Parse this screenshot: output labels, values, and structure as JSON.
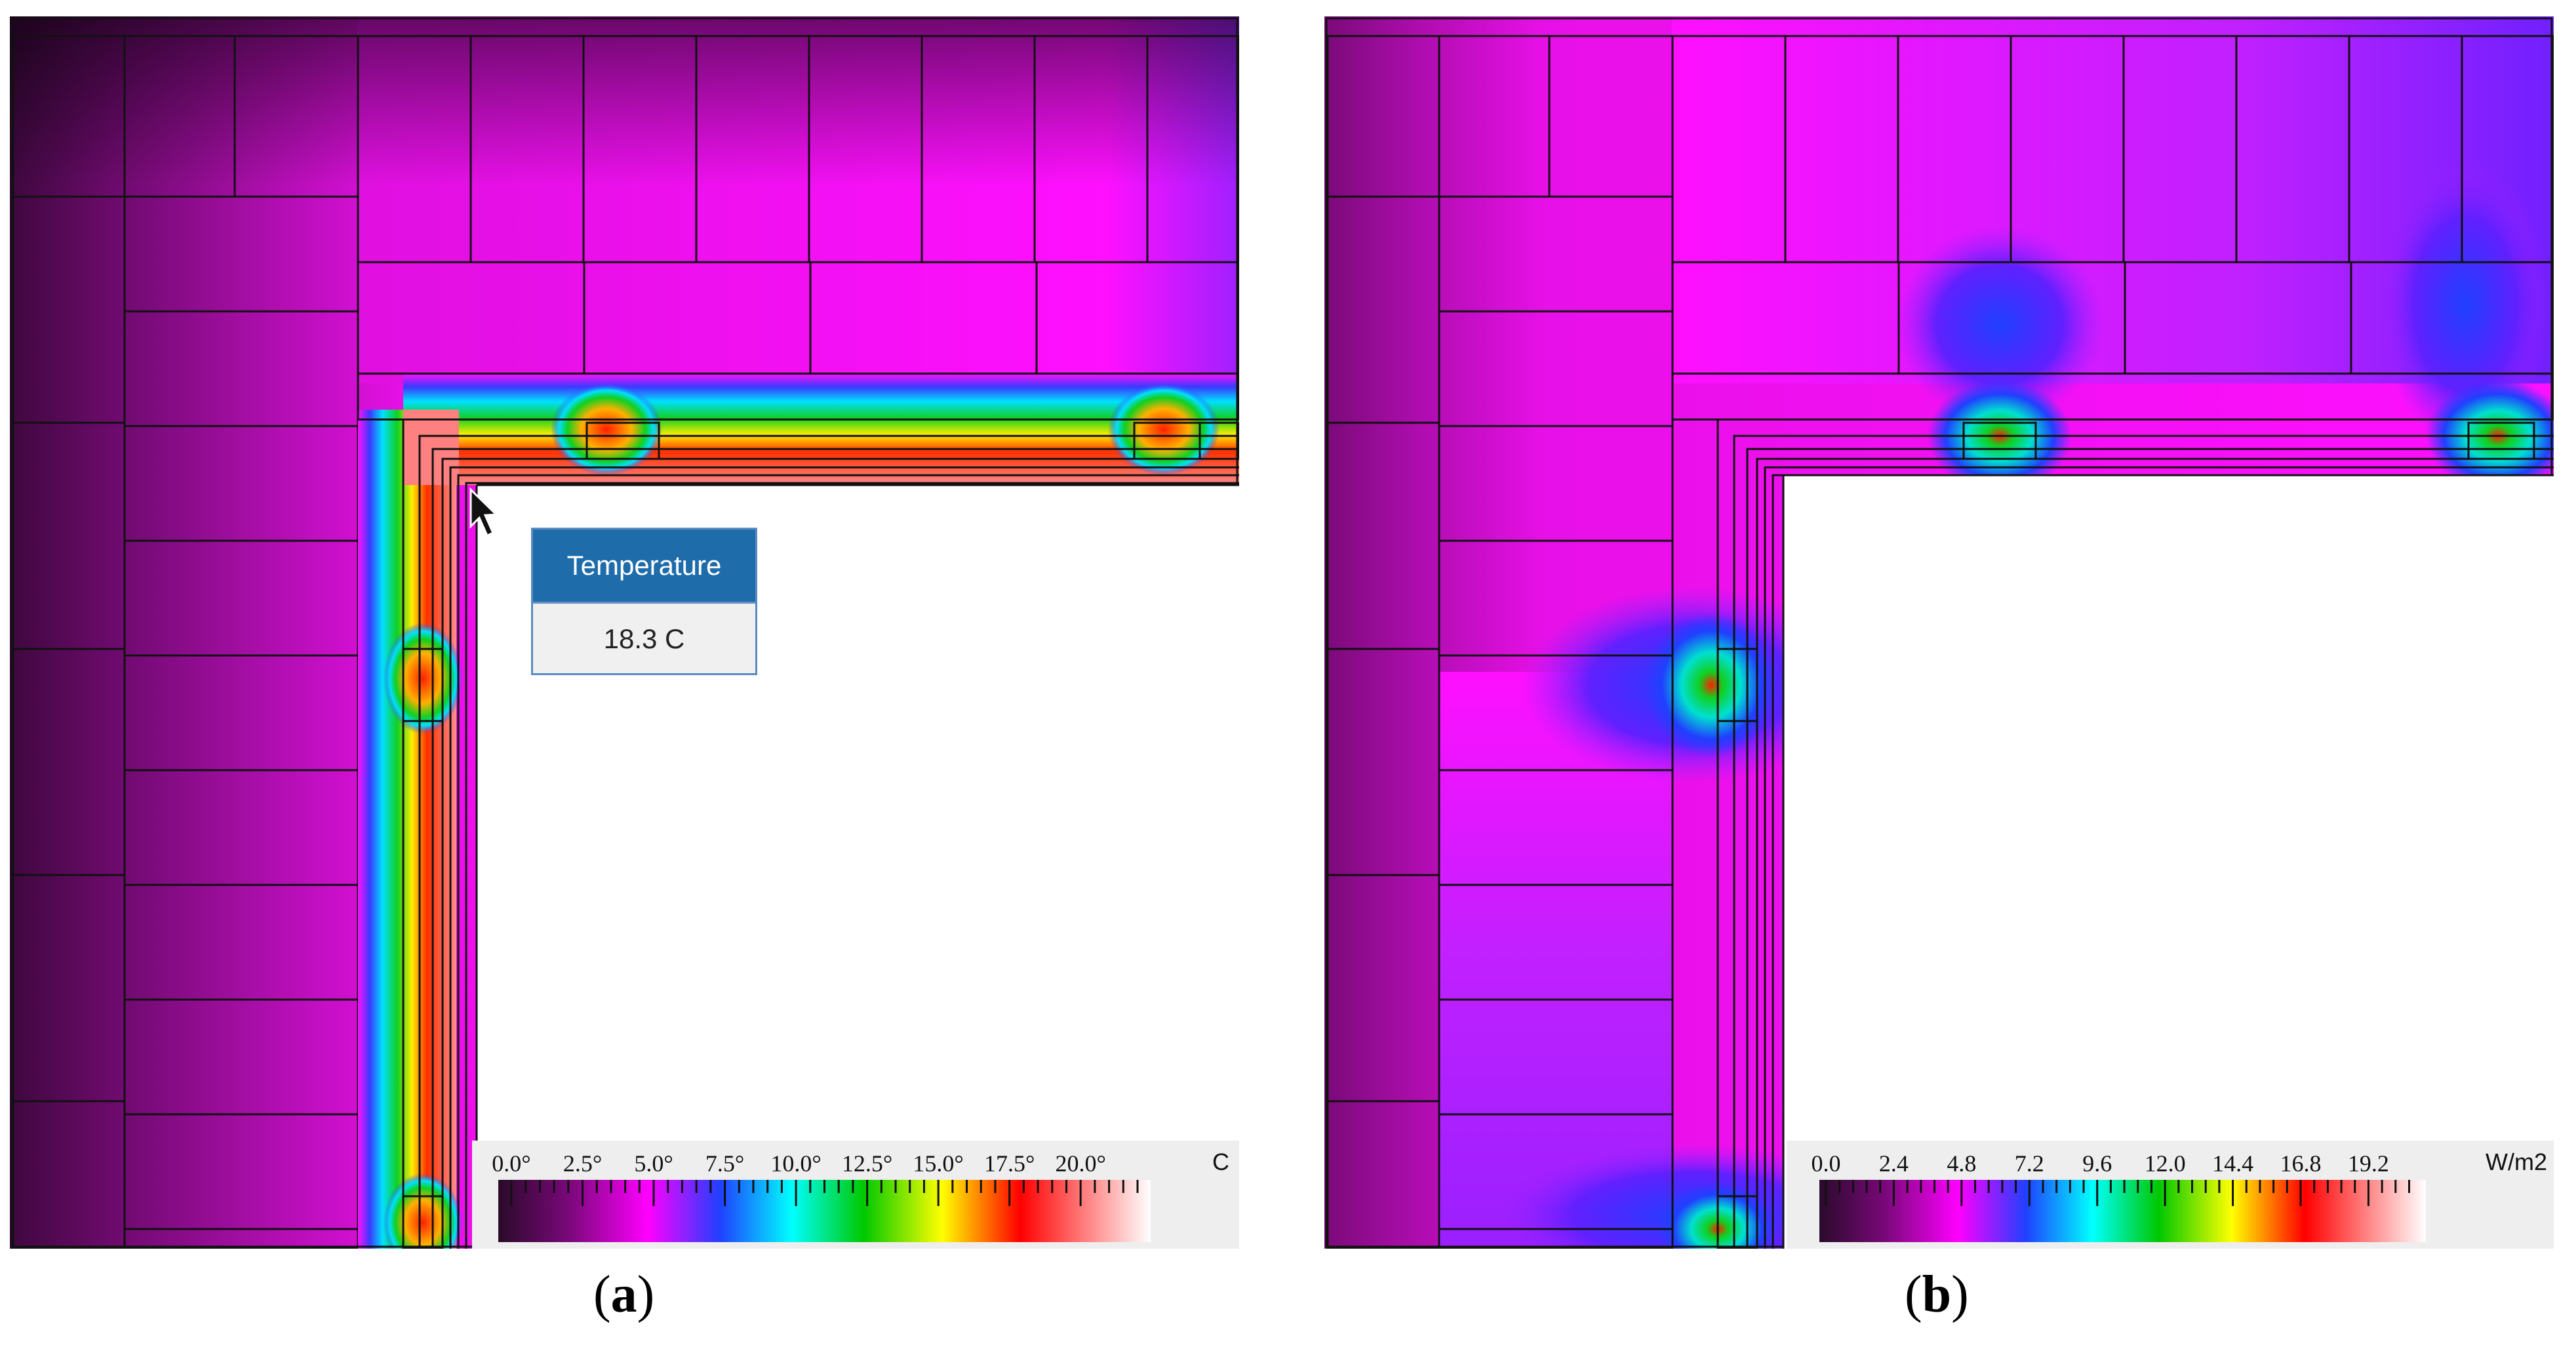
{
  "panels": [
    {
      "id": "a",
      "caption_prefix": "(",
      "caption_letter": "a",
      "caption_suffix": ")",
      "tooltip": {
        "title": "Temperature",
        "value": "18.3 C"
      },
      "legend": {
        "unit": "C",
        "ticks": [
          "0.0°",
          "2.5°",
          "5.0°",
          "7.5°",
          "10.0°",
          "12.5°",
          "15.0°",
          "17.5°",
          "20.0°"
        ],
        "range": [
          0.0,
          22.0
        ]
      }
    },
    {
      "id": "b",
      "caption_prefix": "(",
      "caption_letter": "b",
      "caption_suffix": ")",
      "legend": {
        "unit": "W/m2",
        "ticks": [
          "0.0",
          "2.4",
          "4.8",
          "7.2",
          "9.6",
          "12.0",
          "14.4",
          "16.8",
          "19.2"
        ],
        "range": [
          0.0,
          21.0
        ]
      }
    }
  ],
  "colors": {
    "scale": [
      "#2a0a2a",
      "#7b087b",
      "#ff00ff",
      "#2040ff",
      "#00ffff",
      "#00c800",
      "#ffff00",
      "#ff0000",
      "#ffffff"
    ],
    "legend_bg": "#eeeeee",
    "tooltip_header": "#1f6cab"
  },
  "icons": {
    "cursor": "mouse-pointer-icon"
  }
}
